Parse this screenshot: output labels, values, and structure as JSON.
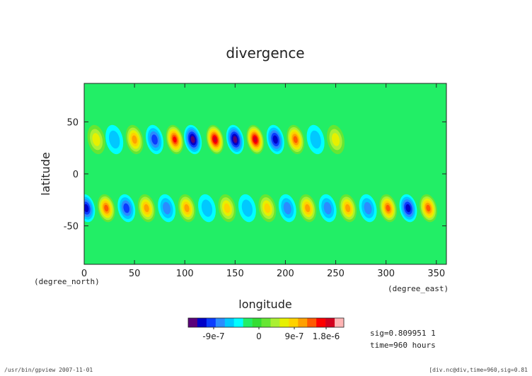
{
  "chart_data": {
    "type": "heatmap",
    "title": "divergence",
    "xlabel": "longitude",
    "ylabel": "latitude",
    "x_unit": "(degree_east)",
    "y_unit": "(degree_north)",
    "xlim": [
      0,
      360
    ],
    "ylim": [
      -87,
      87
    ],
    "x_ticks": [
      0,
      50,
      100,
      150,
      200,
      250,
      300,
      350
    ],
    "y_ticks": [
      -50,
      0,
      50
    ],
    "grid": false,
    "legend": "bottom-center colorbar",
    "colorbar": {
      "ticks": [
        "-9e-7",
        "0",
        "9e-7",
        "1.8e-6"
      ],
      "colors": [
        "#5a007a",
        "#0000c8",
        "#0a3cff",
        "#2a8cff",
        "#00c8ff",
        "#00ffff",
        "#22ee66",
        "#33dd33",
        "#66e633",
        "#aaf033",
        "#e6f000",
        "#ffd200",
        "#ffa000",
        "#ff5a00",
        "#ff0000",
        "#d2001e",
        "#ffb4b4"
      ]
    },
    "background_value": 0,
    "features": {
      "north_band_latitude": 33,
      "south_band_latitude": -33,
      "north_cells": [
        {
          "lon": 12,
          "value": 6e-07
        },
        {
          "lon": 30,
          "value": -4e-07
        },
        {
          "lon": 50,
          "value": 1e-06
        },
        {
          "lon": 70,
          "value": -9e-07
        },
        {
          "lon": 90,
          "value": 1.6e-06
        },
        {
          "lon": 108,
          "value": -1.3e-06
        },
        {
          "lon": 130,
          "value": 1.8e-06
        },
        {
          "lon": 150,
          "value": -1.3e-06
        },
        {
          "lon": 170,
          "value": 1.7e-06
        },
        {
          "lon": 190,
          "value": -1e-06
        },
        {
          "lon": 210,
          "value": 1.3e-06
        },
        {
          "lon": 230,
          "value": -5e-07
        },
        {
          "lon": 250,
          "value": 7e-07
        }
      ],
      "south_cells": [
        {
          "lon": 2,
          "value": -1.2e-06
        },
        {
          "lon": 22,
          "value": 1.4e-06
        },
        {
          "lon": 42,
          "value": -8e-07
        },
        {
          "lon": 62,
          "value": 1.1e-06
        },
        {
          "lon": 82,
          "value": -6e-07
        },
        {
          "lon": 102,
          "value": 1e-06
        },
        {
          "lon": 122,
          "value": -5e-07
        },
        {
          "lon": 142,
          "value": 9e-07
        },
        {
          "lon": 162,
          "value": -5e-07
        },
        {
          "lon": 182,
          "value": 9e-07
        },
        {
          "lon": 202,
          "value": -6e-07
        },
        {
          "lon": 222,
          "value": 1e-06
        },
        {
          "lon": 242,
          "value": -6e-07
        },
        {
          "lon": 262,
          "value": 1e-06
        },
        {
          "lon": 282,
          "value": -7e-07
        },
        {
          "lon": 302,
          "value": 1.3e-06
        },
        {
          "lon": 322,
          "value": -1e-06
        },
        {
          "lon": 342,
          "value": 1.3e-06
        }
      ]
    }
  },
  "info": {
    "sig_line": "sig=0.809951 1",
    "time_line": "time=960 hours"
  },
  "footer": {
    "left": "/usr/bin/gpview  2007-11-01",
    "right": "[div.nc@div,time=960,sig=0.81"
  }
}
